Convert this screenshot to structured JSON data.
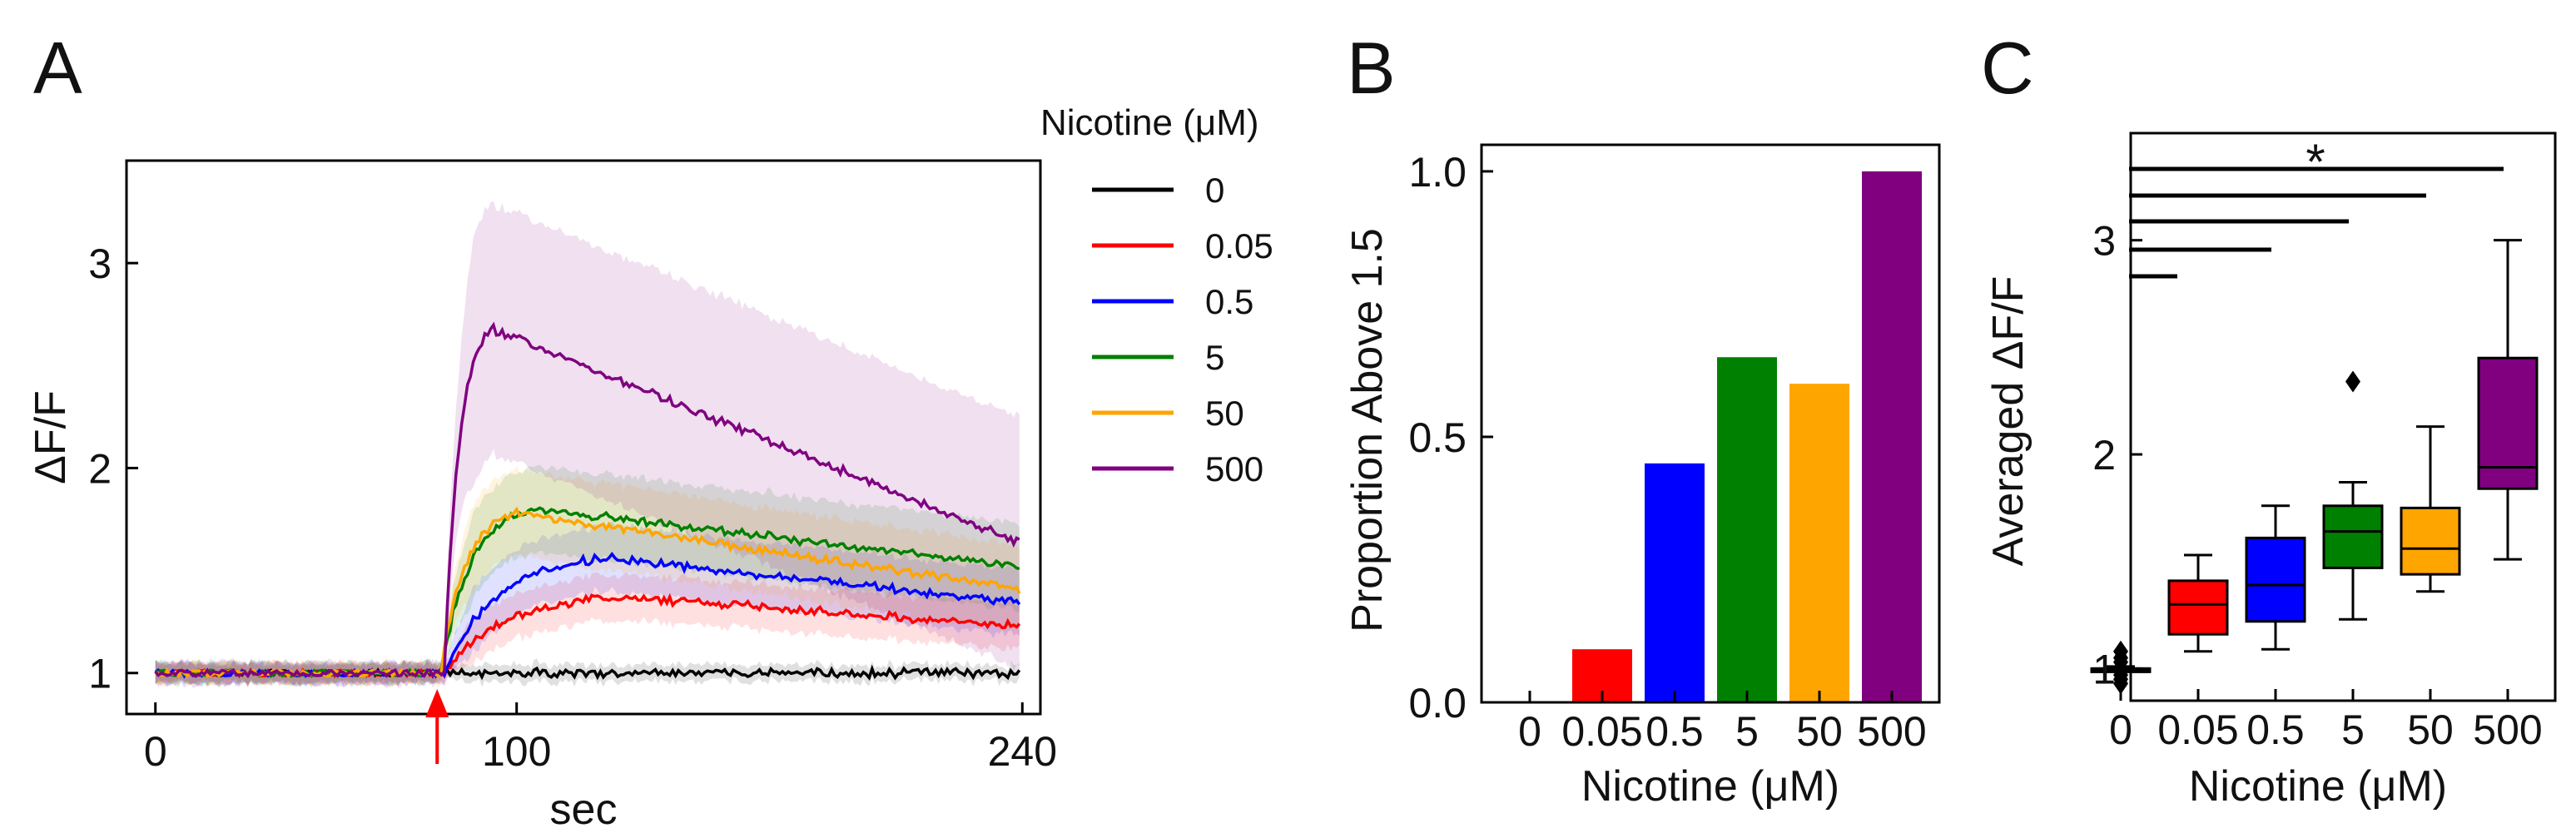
{
  "colors": {
    "0": "#000000",
    "0.05": "#ff0000",
    "0.5": "#0000ff",
    "5": "#008000",
    "50": "#ffa500",
    "500": "#800080",
    "arrow": "#ff0000",
    "axis": "#000000"
  },
  "chart_data": [
    {
      "panel": "A",
      "type": "line",
      "xlabel": "sec",
      "ylabel": "ΔF/F",
      "xlim": [
        -8,
        245
      ],
      "ylim": [
        0.8,
        3.5
      ],
      "xticks": [
        0,
        100,
        240
      ],
      "yticks": [
        1,
        2,
        3
      ],
      "stimulus_time": 78,
      "legend": {
        "title": "Nicotine (μM)",
        "position": "right",
        "entries": [
          "0",
          "0.05",
          "0.5",
          "5",
          "50",
          "500"
        ]
      },
      "series": [
        {
          "name": "0",
          "baseline": 1.0,
          "stim": 78,
          "peak": 1.0,
          "peak_t": 100,
          "end": 1.0,
          "band": 0.03
        },
        {
          "name": "0.05",
          "baseline": 1.0,
          "stim": 80,
          "peak": 1.37,
          "peak_t": 130,
          "end": 1.23,
          "band": 0.1
        },
        {
          "name": "0.5",
          "baseline": 1.0,
          "stim": 80,
          "peak": 1.56,
          "peak_t": 125,
          "end": 1.34,
          "band": 0.15
        },
        {
          "name": "5",
          "baseline": 1.0,
          "stim": 79,
          "peak": 1.8,
          "peak_t": 105,
          "end": 1.52,
          "band": 0.2
        },
        {
          "name": "50",
          "baseline": 1.0,
          "stim": 79,
          "peak": 1.78,
          "peak_t": 100,
          "end": 1.41,
          "band": 0.2
        },
        {
          "name": "500",
          "baseline": 1.0,
          "stim": 80,
          "peak": 2.68,
          "peak_t": 93,
          "end": 1.63,
          "band": 0.6
        }
      ]
    },
    {
      "panel": "B",
      "type": "bar",
      "xlabel": "Nicotine (μM)",
      "ylabel": "Proportion Above 1.5",
      "ylim": [
        0,
        1.05
      ],
      "yticks": [
        "0.0",
        "0.5",
        "1.0"
      ],
      "categories": [
        "0",
        "0.05",
        "0.5",
        "5",
        "50",
        "500"
      ],
      "values": [
        0.0,
        0.1,
        0.45,
        0.65,
        0.6,
        1.0
      ]
    },
    {
      "panel": "C",
      "type": "box",
      "xlabel": "Nicotine (μM)",
      "ylabel": "Averaged ΔF/F",
      "ylim": [
        0.85,
        3.5
      ],
      "yticks": [
        1,
        2,
        3
      ],
      "categories": [
        "0",
        "0.05",
        "0.5",
        "5",
        "50",
        "500"
      ],
      "boxes": [
        {
          "name": "0",
          "whislo": 0.99,
          "q1": 0.99,
          "med": 1.0,
          "q3": 1.0,
          "whishi": 1.01,
          "fliers": [
            0.93,
            0.95,
            0.97,
            1.03,
            1.05,
            1.08
          ]
        },
        {
          "name": "0.05",
          "whislo": 1.08,
          "q1": 1.16,
          "med": 1.3,
          "q3": 1.41,
          "whishi": 1.53,
          "fliers": []
        },
        {
          "name": "0.5",
          "whislo": 1.09,
          "q1": 1.22,
          "med": 1.39,
          "q3": 1.61,
          "whishi": 1.76,
          "fliers": []
        },
        {
          "name": "5",
          "whislo": 1.23,
          "q1": 1.47,
          "med": 1.64,
          "q3": 1.76,
          "whishi": 1.87,
          "fliers": [
            2.34
          ]
        },
        {
          "name": "50",
          "whislo": 1.36,
          "q1": 1.44,
          "med": 1.56,
          "q3": 1.75,
          "whishi": 2.13,
          "fliers": []
        },
        {
          "name": "500",
          "whislo": 1.51,
          "q1": 1.84,
          "med": 1.94,
          "q3": 2.45,
          "whishi": 3.0,
          "fliers": []
        }
      ],
      "significance": {
        "label": "*",
        "comparisons": [
          [
            "0",
            "0.05"
          ],
          [
            "0",
            "0.5"
          ],
          [
            "0",
            "5"
          ],
          [
            "0",
            "50"
          ],
          [
            "0",
            "500"
          ]
        ]
      }
    }
  ]
}
